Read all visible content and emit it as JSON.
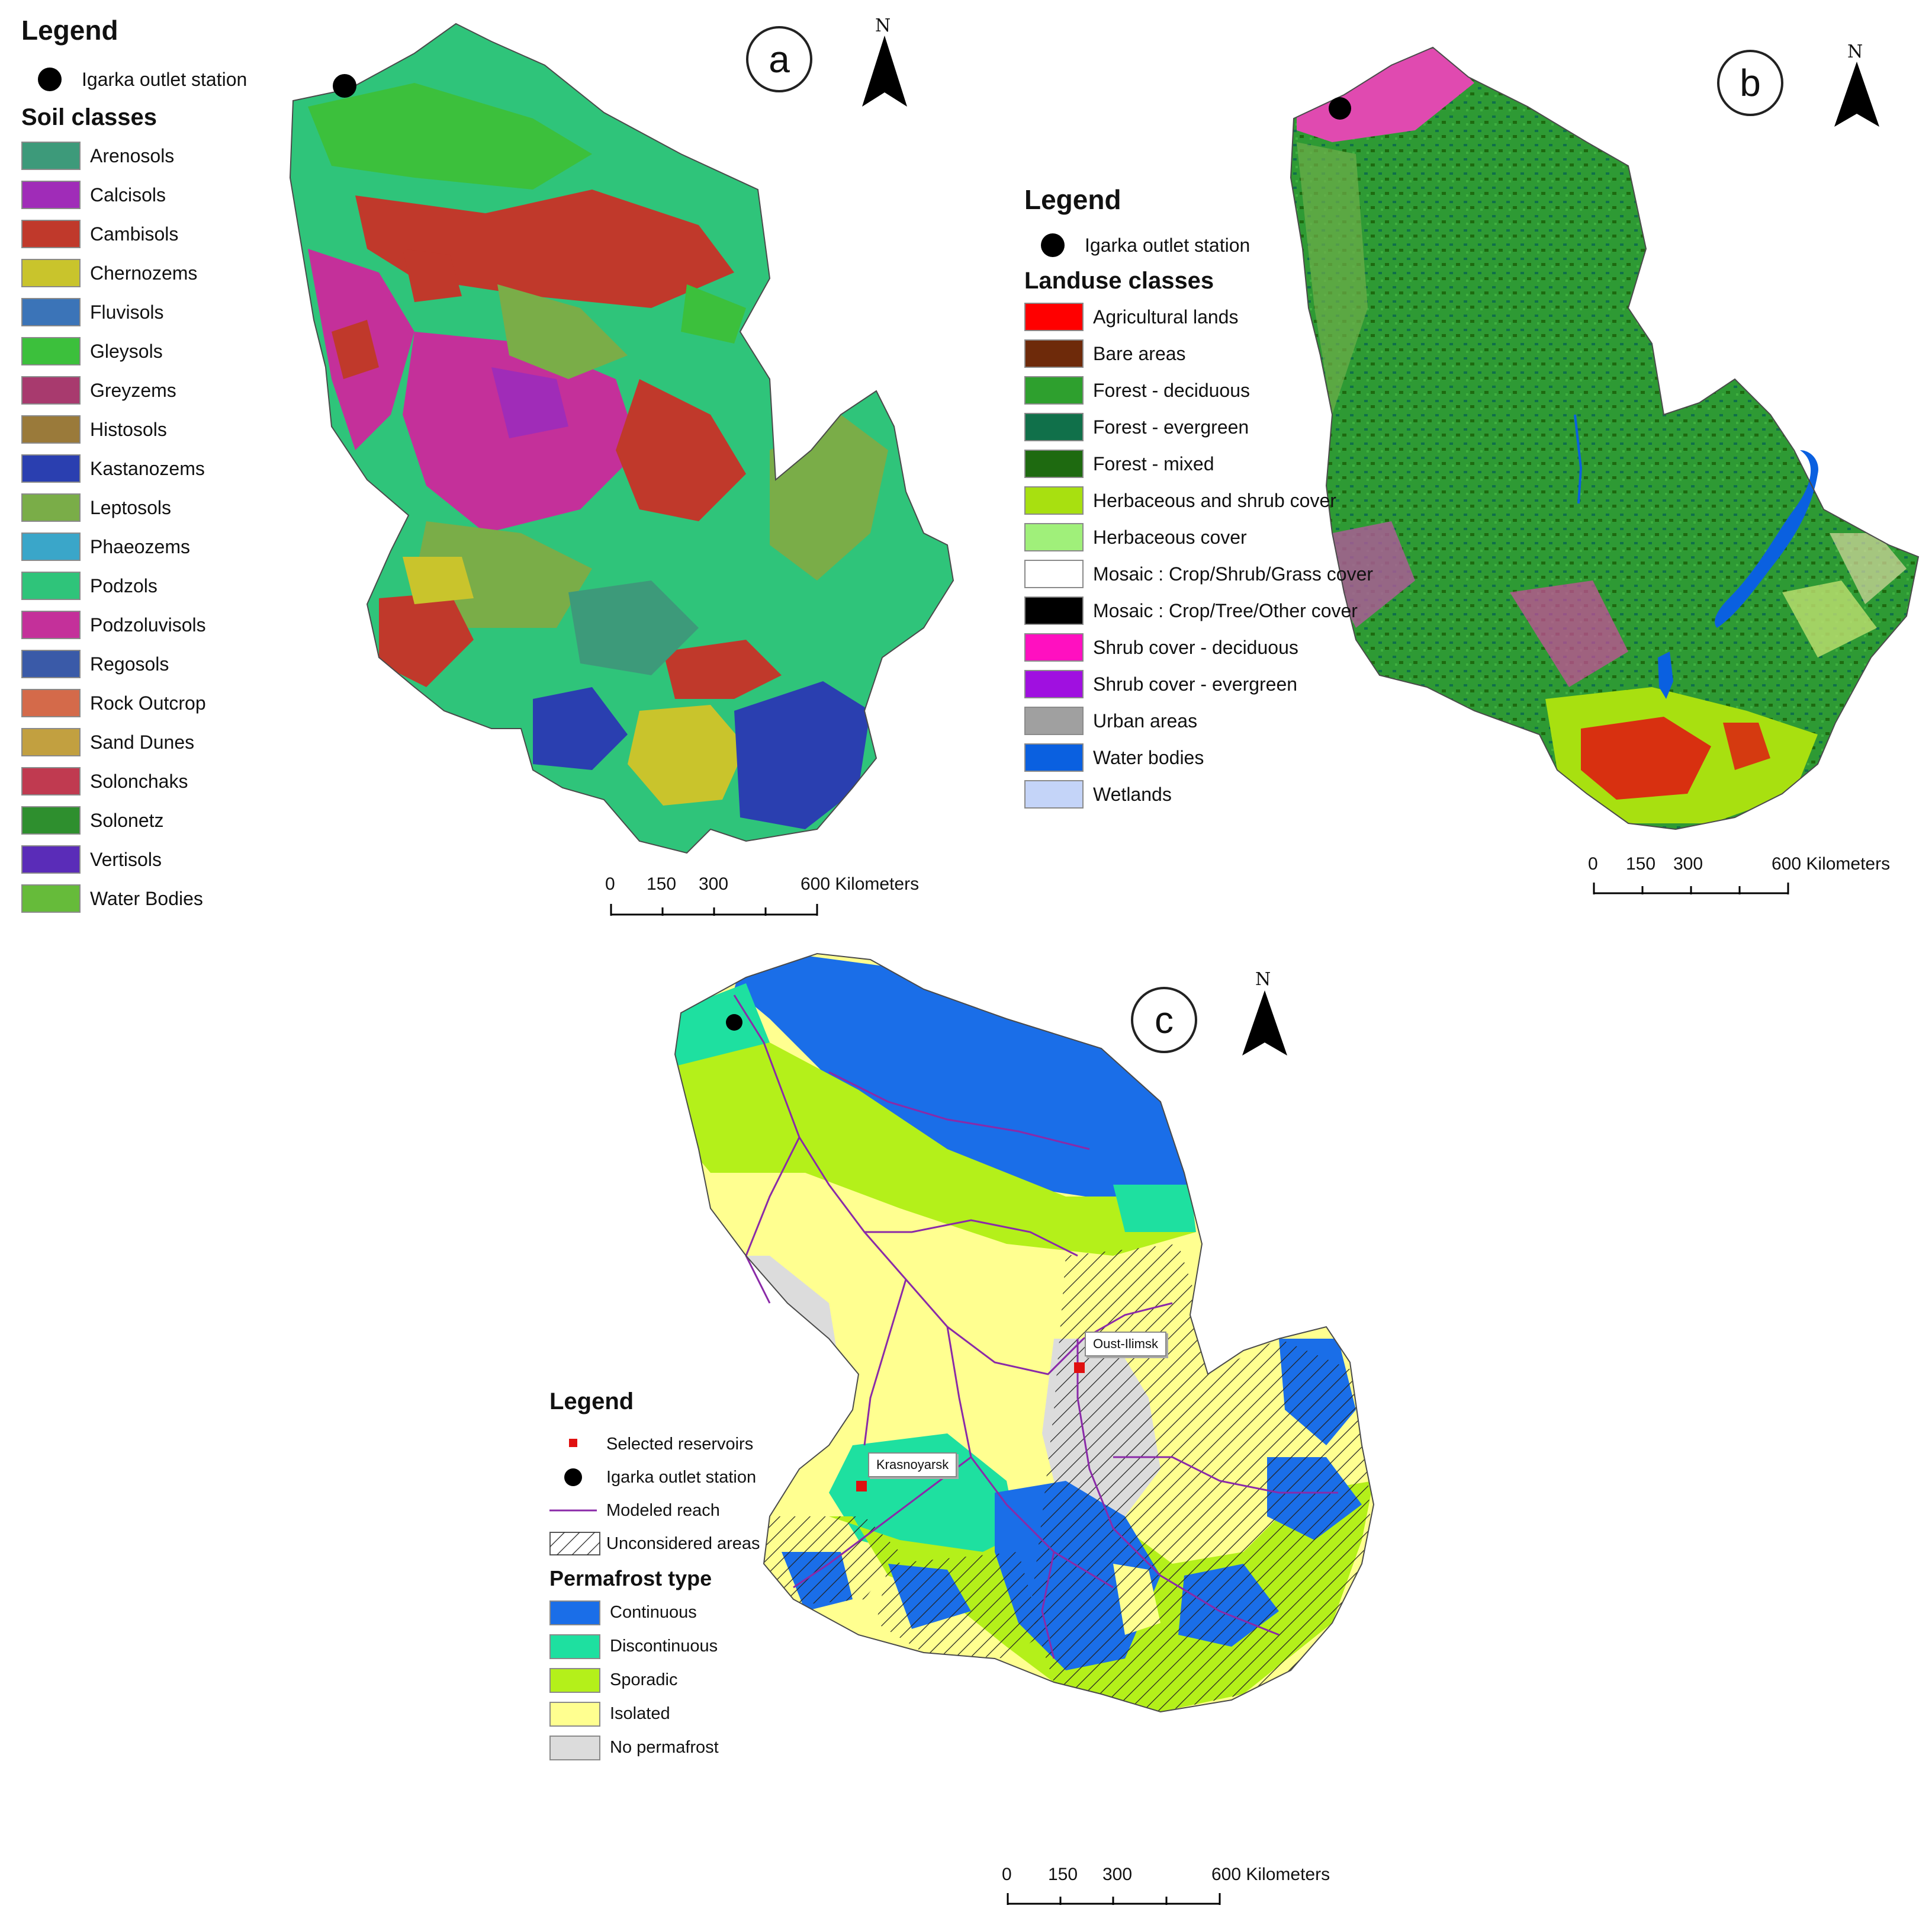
{
  "station_label": "Igarka outlet station",
  "legend_heading": "Legend",
  "north_symbol": "N",
  "panel_a": {
    "badge": "a",
    "classes_title": "Soil classes",
    "classes": [
      {
        "label": "Arenosols",
        "color": "#3d9a7a"
      },
      {
        "label": "Calcisols",
        "color": "#a02cb8"
      },
      {
        "label": "Cambisols",
        "color": "#c0392b"
      },
      {
        "label": "Chernozems",
        "color": "#c9c42c"
      },
      {
        "label": "Fluvisols",
        "color": "#3b74b8"
      },
      {
        "label": "Gleysols",
        "color": "#3cc03c"
      },
      {
        "label": "Greyzems",
        "color": "#a83a6e"
      },
      {
        "label": "Histosols",
        "color": "#9a7a3a"
      },
      {
        "label": "Kastanozems",
        "color": "#2a3fb0"
      },
      {
        "label": "Leptosols",
        "color": "#7aad48"
      },
      {
        "label": "Phaeozems",
        "color": "#3aa6c9"
      },
      {
        "label": "Podzols",
        "color": "#2fc47a"
      },
      {
        "label": "Podzoluvisols",
        "color": "#c4309a"
      },
      {
        "label": "Regosols",
        "color": "#3a5aa8"
      },
      {
        "label": "Rock Outcrop",
        "color": "#d46a4a"
      },
      {
        "label": "Sand Dunes",
        "color": "#c2a040"
      },
      {
        "label": "Solonchaks",
        "color": "#c03a50"
      },
      {
        "label": "Solonetz",
        "color": "#2e8f2e"
      },
      {
        "label": "Vertisols",
        "color": "#5a2cb8"
      },
      {
        "label": "Water Bodies",
        "color": "#66bb3a"
      }
    ],
    "scale": {
      "t0": "0",
      "t1": "150",
      "t2": "300",
      "t3": "600 Kilometers"
    }
  },
  "panel_b": {
    "badge": "b",
    "classes_title": "Landuse classes",
    "classes": [
      {
        "label": "Agricultural lands",
        "color": "#ff0000"
      },
      {
        "label": "Bare areas",
        "color": "#6e2a0a"
      },
      {
        "label": "Forest - deciduous",
        "color": "#2ea02e"
      },
      {
        "label": "Forest - evergreen",
        "color": "#10704a"
      },
      {
        "label": "Forest - mixed",
        "color": "#1e6a10"
      },
      {
        "label": "Herbaceous and shrub cover",
        "color": "#a8e010"
      },
      {
        "label": "Herbaceous cover",
        "color": "#a0f07a"
      },
      {
        "label": "Mosaic : Crop/Shrub/Grass cover",
        "color": "#ffffff"
      },
      {
        "label": "Mosaic : Crop/Tree/Other cover",
        "color": "#000000"
      },
      {
        "label": "Shrub cover - deciduous",
        "color": "#ff10c0"
      },
      {
        "label": "Shrub cover - evergreen",
        "color": "#a010e0"
      },
      {
        "label": "Urban areas",
        "color": "#a0a0a0"
      },
      {
        "label": "Water bodies",
        "color": "#0a60e0"
      },
      {
        "label": "Wetlands",
        "color": "#c4d4f8"
      }
    ],
    "scale": {
      "t0": "0",
      "t1": "150",
      "t2": "300",
      "t3": "600 Kilometers"
    }
  },
  "panel_c": {
    "badge": "c",
    "symbols": {
      "reservoirs": "Selected reservoirs",
      "station": "Igarka outlet station",
      "reach": "Modeled reach",
      "unconsidered": "Unconsidered areas"
    },
    "classes_title": "Permafrost type",
    "classes": [
      {
        "label": "Continuous",
        "color": "#1a6ee8"
      },
      {
        "label": "Discontinuous",
        "color": "#1ee0a0"
      },
      {
        "label": "Sporadic",
        "color": "#b4f01a"
      },
      {
        "label": "Isolated",
        "color": "#ffff90"
      },
      {
        "label": "No permafrost",
        "color": "#dcdcdc"
      }
    ],
    "reservoir_labels": {
      "oust_ilimsk": "Oust-Ilimsk",
      "krasnoyarsk": "Krasnoyarsk"
    },
    "scale": {
      "t0": "0",
      "t1": "150",
      "t2": "300",
      "t3": "600 Kilometers"
    }
  }
}
